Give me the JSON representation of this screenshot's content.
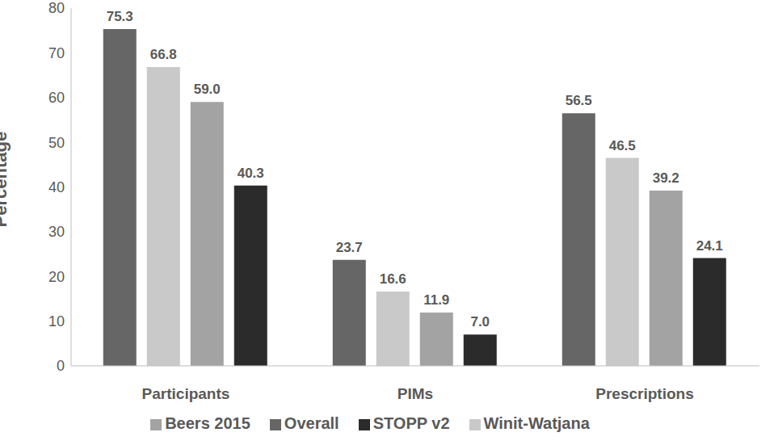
{
  "chart_data": {
    "type": "bar",
    "categories": [
      "Participants",
      "PIMs",
      "Prescriptions"
    ],
    "series": [
      {
        "name": "Overall",
        "color": "#666666",
        "values": [
          75.3,
          23.7,
          56.5
        ],
        "value_labels": [
          "75.3",
          "23.7",
          "56.5"
        ]
      },
      {
        "name": "Winit-Watjana",
        "color": "#c9c9c9",
        "values": [
          66.8,
          16.6,
          46.5
        ],
        "value_labels": [
          "66.8",
          "16.6",
          "46.5"
        ]
      },
      {
        "name": "Beers 2015",
        "color": "#a3a3a3",
        "values": [
          59.0,
          11.9,
          39.2
        ],
        "value_labels": [
          "59.0",
          "11.9",
          "39.2"
        ]
      },
      {
        "name": "STOPP v2",
        "color": "#2b2b2b",
        "values": [
          40.3,
          7.0,
          24.1
        ],
        "value_labels": [
          "40.3",
          "7.0",
          "24.1"
        ]
      }
    ],
    "ylim": [
      0,
      80
    ],
    "yticks": [
      0,
      10,
      20,
      30,
      40,
      50,
      60,
      70,
      80
    ],
    "y_label": "Percentage",
    "grid": false,
    "legend": "bottom",
    "data_labels": true
  }
}
